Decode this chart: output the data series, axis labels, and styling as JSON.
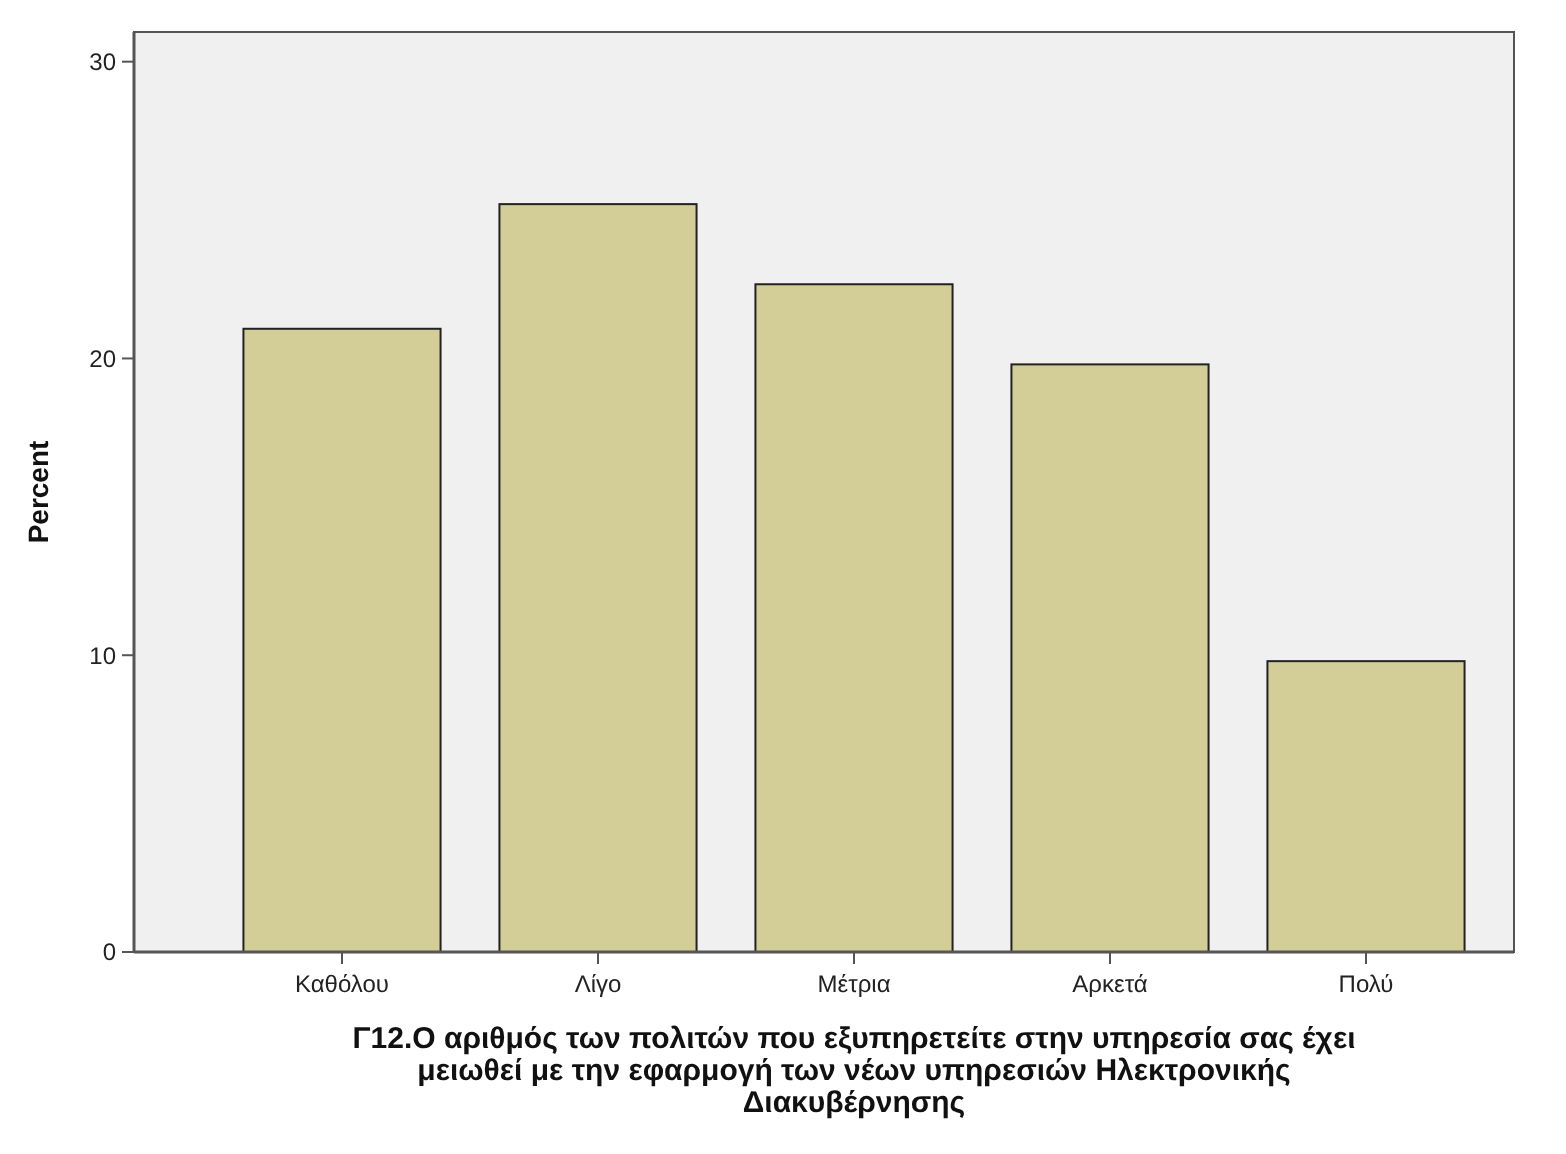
{
  "chart_data": {
    "type": "bar",
    "xlabel": "Γ12.Ο αριθμός των πολιτών που εξυπηρετείτε στην υπηρεσία σας έχει μειωθεί με την εφαρμογή των νέων υπηρεσιών Ηλεκτρονικής Διακυβέρνησης",
    "ylabel": "Percent",
    "categories": [
      "Καθόλου",
      "Λίγο",
      "Μέτρια",
      "Αρκετά",
      "Πολύ"
    ],
    "values": [
      21.0,
      25.2,
      22.5,
      19.8,
      9.8
    ],
    "color": "#d3ce97",
    "ylim": [
      0,
      31
    ],
    "yticks": [
      0,
      10,
      20,
      30
    ],
    "grid": false
  }
}
